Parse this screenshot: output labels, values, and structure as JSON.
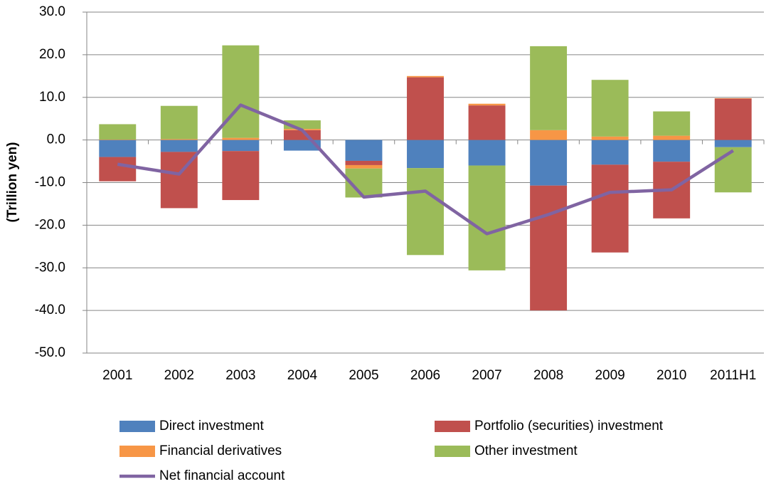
{
  "chart_data": {
    "type": "bar",
    "stacked": true,
    "y_label": "(Trillion yen)",
    "categories": [
      "2001",
      "2002",
      "2003",
      "2004",
      "2005",
      "2006",
      "2007",
      "2008",
      "2009",
      "2010",
      "2011H1"
    ],
    "series": [
      {
        "name": "Direct investment",
        "color": "#4f81bd",
        "type": "bar",
        "values": [
          -4.0,
          -2.8,
          -2.6,
          -2.5,
          -4.9,
          -6.6,
          -6.0,
          -10.7,
          -5.8,
          -5.1,
          -1.7
        ]
      },
      {
        "name": "Portfolio (securities) investment",
        "color": "#c0504d",
        "type": "bar",
        "values": [
          -5.7,
          -13.2,
          -11.5,
          2.3,
          -1.0,
          14.7,
          8.1,
          -29.3,
          -20.6,
          -13.3,
          9.7
        ]
      },
      {
        "name": "Financial derivatives",
        "color": "#f79646",
        "type": "bar",
        "values": [
          0.1,
          0.2,
          0.5,
          0.3,
          -0.8,
          0.3,
          0.4,
          2.3,
          0.8,
          1.0,
          0.1
        ]
      },
      {
        "name": "Other investment",
        "color": "#9bbb59",
        "type": "bar",
        "values": [
          3.6,
          7.8,
          21.7,
          2.0,
          -6.8,
          -20.4,
          -24.6,
          19.7,
          13.3,
          5.7,
          -10.6
        ]
      },
      {
        "name": "Net financial account",
        "color": "#8064a2",
        "type": "line",
        "values": [
          -5.7,
          -8.0,
          8.2,
          2.3,
          -13.4,
          -12.0,
          -22.0,
          -17.5,
          -12.3,
          -11.7,
          -2.5
        ]
      }
    ],
    "ylim": [
      -50,
      30
    ],
    "yticks": [
      {
        "value": 30,
        "label": "30.0"
      },
      {
        "value": 20,
        "label": "20.0"
      },
      {
        "value": 10,
        "label": "10.0"
      },
      {
        "value": 0,
        "label": "0.0"
      },
      {
        "value": -10,
        "label": "-10.0"
      },
      {
        "value": -20,
        "label": "-20.0"
      },
      {
        "value": -30,
        "label": "-30.0"
      },
      {
        "value": -40,
        "label": "-40.0"
      },
      {
        "value": -50,
        "label": "-50.0"
      }
    ],
    "grid": true,
    "legend": "bottom"
  }
}
